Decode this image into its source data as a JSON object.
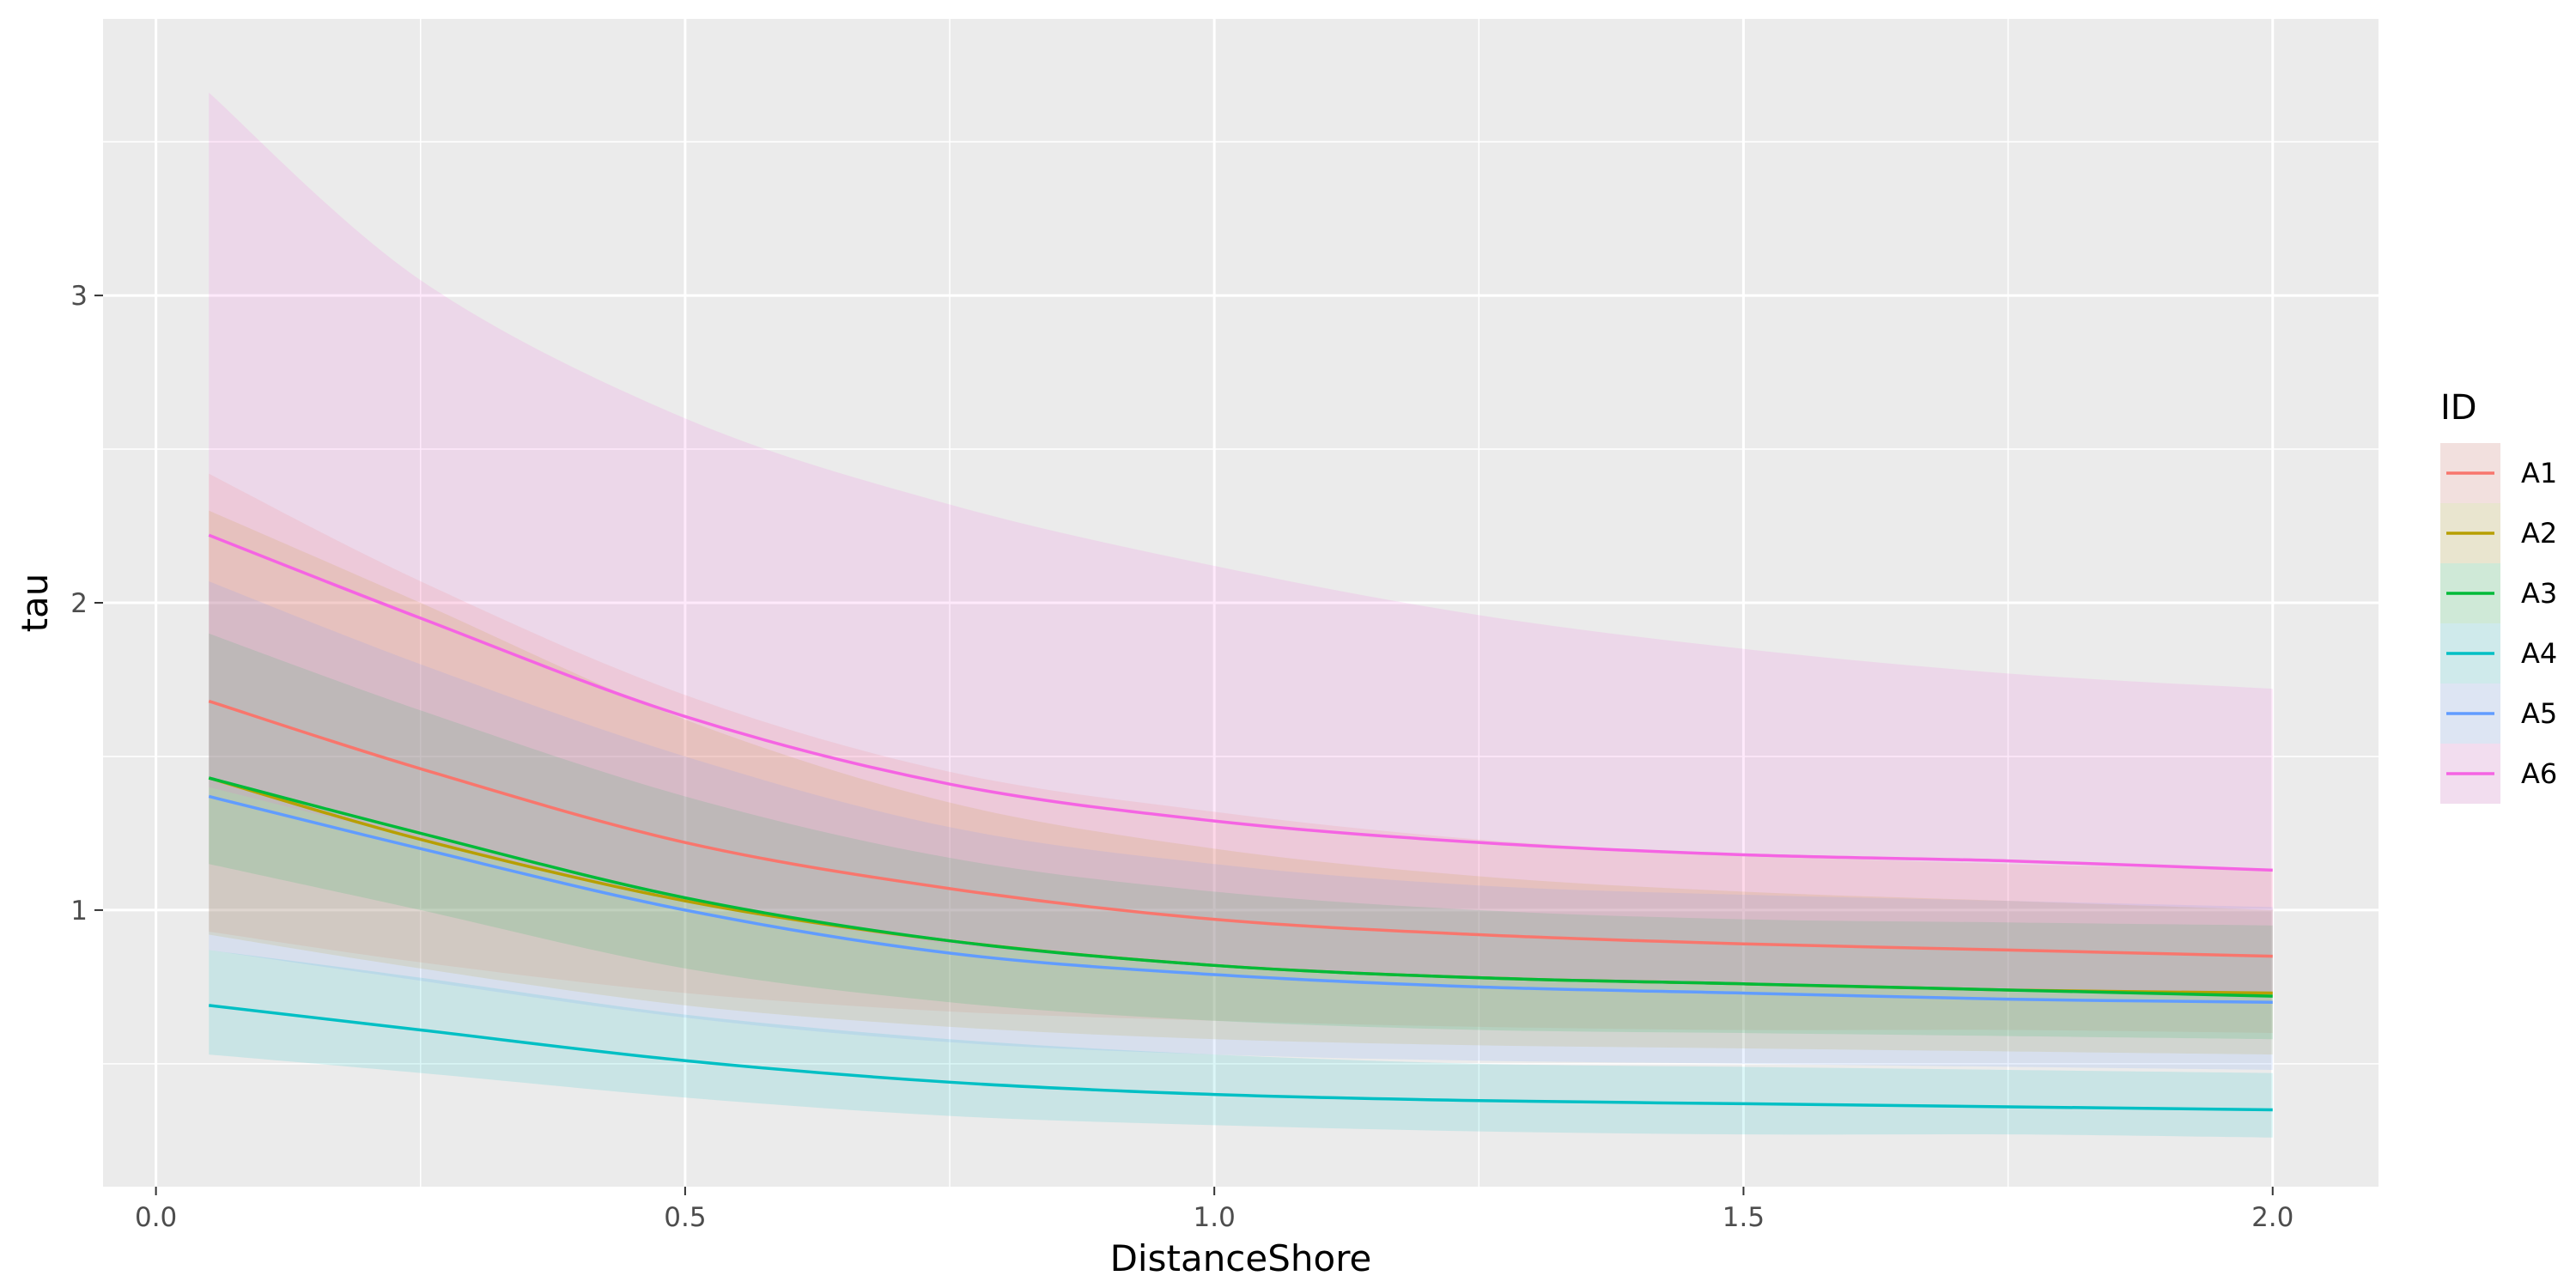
{
  "chart_data": {
    "type": "line",
    "title": "",
    "xlabel": "DistanceShore",
    "ylabel": "tau",
    "xlim": [
      -0.05,
      2.1
    ],
    "ylim": [
      0.1,
      3.9
    ],
    "x_ticks": [
      0.0,
      0.5,
      1.0,
      1.5,
      2.0
    ],
    "x_tick_labels": [
      "0.0",
      "0.5",
      "1.0",
      "1.5",
      "2.0"
    ],
    "y_ticks": [
      1,
      2,
      3
    ],
    "y_tick_labels": [
      "1",
      "2",
      "3"
    ],
    "grid": true,
    "legend": {
      "title": "ID",
      "position": "right"
    },
    "x": [
      0.05,
      0.25,
      0.5,
      0.75,
      1.0,
      1.25,
      1.5,
      1.75,
      2.0
    ],
    "series": [
      {
        "name": "A1",
        "color": "#F8766D",
        "values": [
          1.68,
          1.46,
          1.22,
          1.07,
          0.97,
          0.92,
          0.89,
          0.87,
          0.85
        ],
        "lower": [
          0.93,
          0.83,
          0.73,
          0.67,
          0.64,
          0.62,
          0.61,
          0.61,
          0.6
        ],
        "upper": [
          2.42,
          2.07,
          1.7,
          1.45,
          1.32,
          1.23,
          1.18,
          1.15,
          1.13
        ]
      },
      {
        "name": "A2",
        "color": "#B79F00",
        "values": [
          1.43,
          1.23,
          1.03,
          0.9,
          0.82,
          0.78,
          0.76,
          0.74,
          0.73
        ],
        "lower": [
          0.92,
          0.81,
          0.69,
          0.62,
          0.58,
          0.56,
          0.55,
          0.54,
          0.53
        ],
        "upper": [
          2.3,
          2.0,
          1.62,
          1.35,
          1.2,
          1.11,
          1.06,
          1.03,
          1.0
        ]
      },
      {
        "name": "A3",
        "color": "#00BA38",
        "values": [
          1.43,
          1.25,
          1.04,
          0.9,
          0.82,
          0.78,
          0.76,
          0.74,
          0.72
        ],
        "lower": [
          1.15,
          1.0,
          0.81,
          0.7,
          0.64,
          0.61,
          0.6,
          0.59,
          0.58
        ],
        "upper": [
          1.9,
          1.65,
          1.37,
          1.17,
          1.06,
          1.0,
          0.97,
          0.96,
          0.95
        ]
      },
      {
        "name": "A4",
        "color": "#00BFC4",
        "values": [
          0.69,
          0.61,
          0.51,
          0.44,
          0.4,
          0.38,
          0.37,
          0.36,
          0.35
        ],
        "lower": [
          0.53,
          0.47,
          0.39,
          0.33,
          0.3,
          0.28,
          0.27,
          0.27,
          0.26
        ],
        "upper": [
          0.87,
          0.78,
          0.66,
          0.58,
          0.53,
          0.5,
          0.49,
          0.48,
          0.47
        ]
      },
      {
        "name": "A5",
        "color": "#619CFF",
        "values": [
          1.37,
          1.2,
          1.0,
          0.86,
          0.79,
          0.75,
          0.73,
          0.71,
          0.7
        ],
        "lower": [
          0.87,
          0.77,
          0.65,
          0.57,
          0.53,
          0.51,
          0.5,
          0.49,
          0.48
        ],
        "upper": [
          2.07,
          1.8,
          1.5,
          1.27,
          1.15,
          1.08,
          1.05,
          1.03,
          1.01
        ]
      },
      {
        "name": "A6",
        "color": "#F564E3",
        "values": [
          2.22,
          1.95,
          1.63,
          1.41,
          1.29,
          1.22,
          1.18,
          1.16,
          1.13
        ],
        "lower": [
          1.4,
          1.23,
          1.03,
          0.89,
          0.82,
          0.78,
          0.76,
          0.74,
          0.73
        ],
        "upper": [
          3.66,
          3.05,
          2.6,
          2.32,
          2.12,
          1.96,
          1.85,
          1.77,
          1.72
        ]
      }
    ]
  }
}
